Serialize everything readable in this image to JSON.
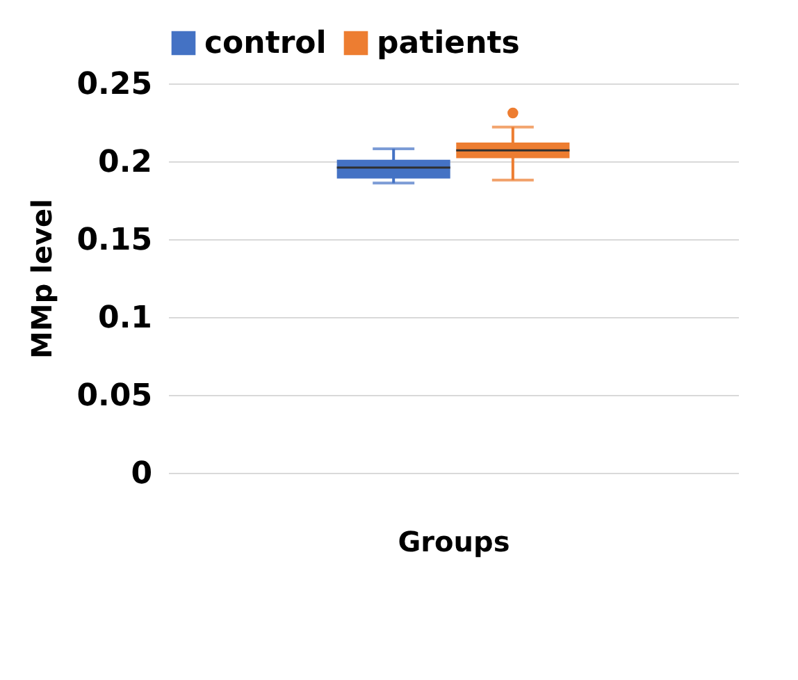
{
  "chart_data": {
    "type": "box",
    "xlabel": "Groups",
    "ylabel": "MMp level",
    "categories": [
      null
    ],
    "series": [
      {
        "name": "control",
        "color": "#4472c4",
        "boxes": [
          {
            "low": 0.186,
            "q1": 0.189,
            "median": 0.196,
            "q3": 0.201,
            "high": 0.208
          }
        ]
      },
      {
        "name": "patients",
        "color": "#ed7d31",
        "boxes": [
          {
            "low": 0.188,
            "q1": 0.202,
            "median": 0.207,
            "q3": 0.212,
            "high": 0.222,
            "outliers": [
              0.231
            ]
          }
        ]
      }
    ],
    "ylim": [
      0,
      0.25
    ],
    "yticks": [
      0,
      0.05,
      0.1,
      0.15,
      0.2,
      0.25
    ],
    "grid": "y",
    "legend": "top"
  }
}
